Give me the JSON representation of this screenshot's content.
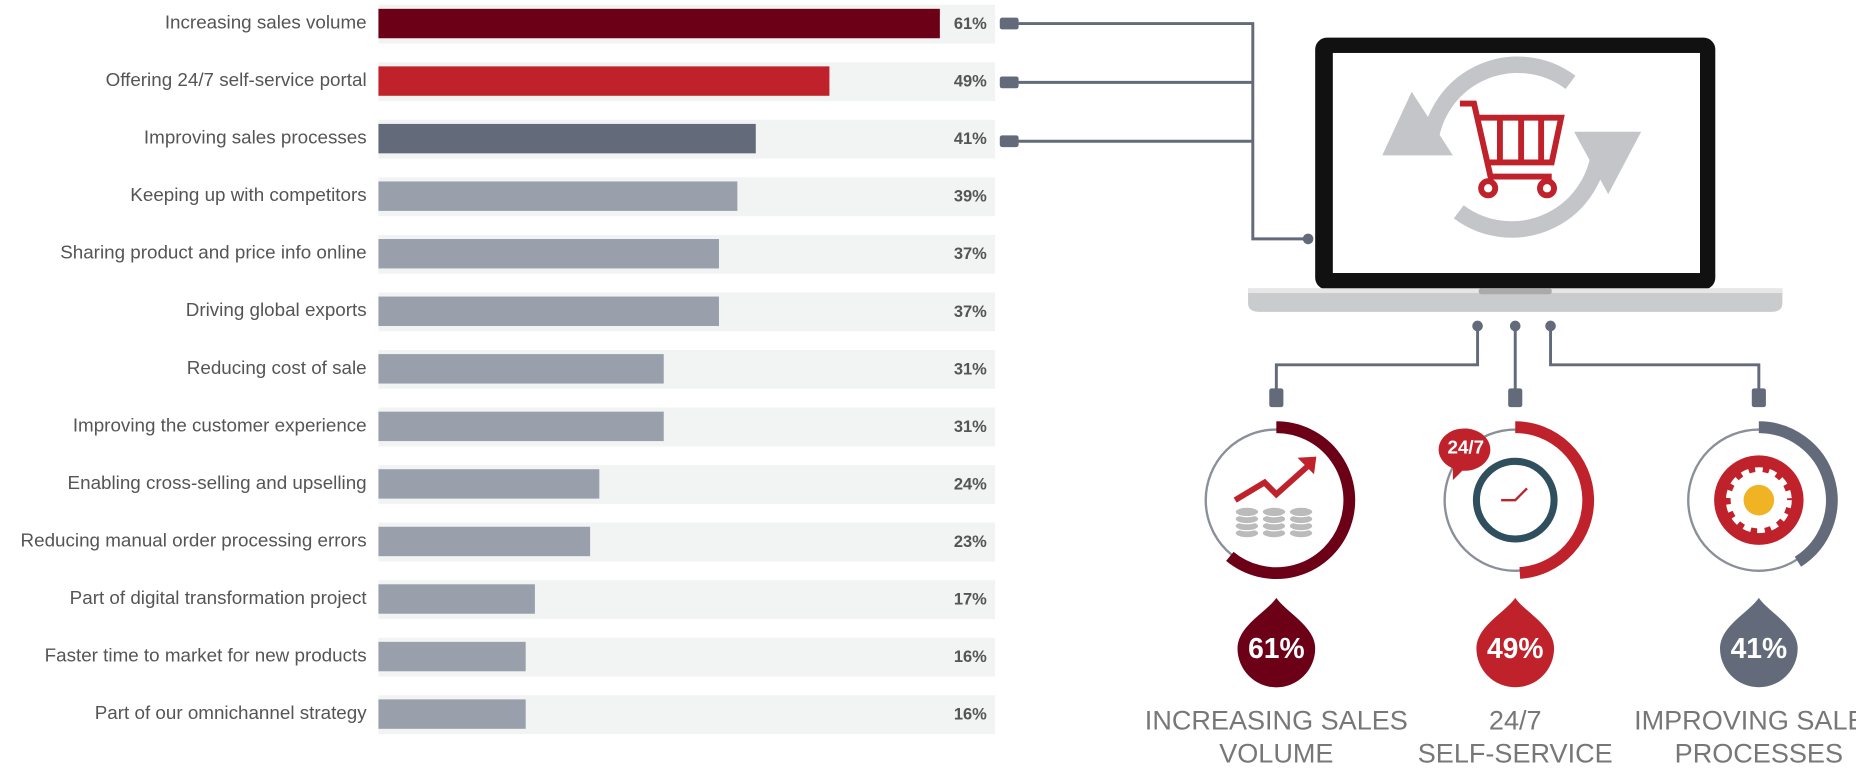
{
  "chart_data": {
    "type": "hbar",
    "categories": [
      "Increasing sales volume",
      "Offering 24/7 self-service portal",
      "Improving sales processes",
      "Keeping up with competitors",
      "Sharing product and price info online",
      "Driving global exports",
      "Reducing cost of sale",
      "Improving the customer experience",
      "Enabling cross-selling and upselling",
      "Reducing manual order processing errors",
      "Part of digital transformation project",
      "Faster time to market for new products",
      "Part of our omnichannel strategy"
    ],
    "values": [
      61,
      49,
      41,
      39,
      37,
      37,
      31,
      31,
      24,
      23,
      17,
      16,
      16
    ],
    "value_labels": [
      "61%",
      "49%",
      "41%",
      "39%",
      "37%",
      "37%",
      "31%",
      "31%",
      "24%",
      "23%",
      "17%",
      "16%",
      "16%"
    ],
    "colors": [
      "#6b0017",
      "#c0222b",
      "#636b7a",
      "#999fab",
      "#999fab",
      "#999fab",
      "#999fab",
      "#999fab",
      "#999fab",
      "#999fab",
      "#999fab",
      "#999fab",
      "#999fab"
    ],
    "xlim": [
      0,
      67
    ],
    "highlights": [
      {
        "value": 61,
        "value_label": "61%",
        "label_lines": [
          "INCREASING SALES",
          "VOLUME"
        ],
        "color": "#6b0017"
      },
      {
        "value": 49,
        "value_label": "49%",
        "label_lines": [
          "24/7",
          "SELF-SERVICE"
        ],
        "color": "#c0222b",
        "badge": "24/7"
      },
      {
        "value": 41,
        "value_label": "41%",
        "label_lines": [
          "IMPROVING SALES",
          "PROCESSES"
        ],
        "color": "#636b7a"
      }
    ]
  }
}
